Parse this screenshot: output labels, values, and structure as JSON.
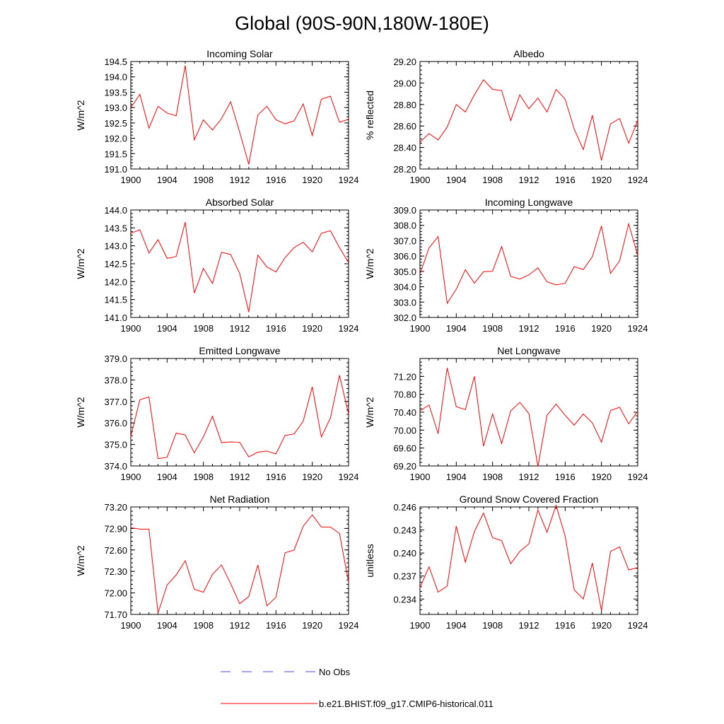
{
  "page_title": "Global (90S-90N,180W-180E)",
  "legend": {
    "entries": [
      {
        "label": "No Obs",
        "style": "dashed",
        "color": "#4a4adb"
      },
      {
        "label": "b.e21.BHIST.f09_g17.CMIP6-historical.011",
        "style": "solid",
        "color": "#ff0000"
      }
    ]
  },
  "colors": {
    "series": "#ff0000",
    "obs": "#4a4adb",
    "axis": "#000000"
  },
  "chart_data": [
    {
      "type": "line",
      "title": "Incoming Solar",
      "xlabel": "",
      "ylabel": "W/m^2",
      "xlim": [
        1900,
        1924
      ],
      "ylim": [
        191.0,
        194.5
      ],
      "xticks": [
        1900,
        1904,
        1908,
        1912,
        1916,
        1920,
        1924
      ],
      "xtick_labels": [
        "1900",
        "1904",
        "1908",
        "1912",
        "1916",
        "1920",
        "1924"
      ],
      "yticks": [
        191.0,
        191.5,
        192.0,
        192.5,
        193.0,
        193.5,
        194.0,
        194.5
      ],
      "ytick_labels": [
        "191.0",
        "191.5",
        "192.0",
        "192.5",
        "193.0",
        "193.5",
        "194.0",
        "194.5"
      ],
      "x": [
        1900,
        1901,
        1902,
        1903,
        1904,
        1905,
        1906,
        1907,
        1908,
        1909,
        1910,
        1911,
        1912,
        1913,
        1914,
        1915,
        1916,
        1917,
        1918,
        1919,
        1920,
        1921,
        1922,
        1923,
        1924
      ],
      "series": [
        {
          "name": "b.e21.BHIST.f09_g17.CMIP6-historical.011",
          "values": [
            193.0,
            193.43,
            192.33,
            193.04,
            192.82,
            192.73,
            194.37,
            191.95,
            192.6,
            192.27,
            192.64,
            193.19,
            192.2,
            191.15,
            192.76,
            193.04,
            192.6,
            192.47,
            192.57,
            193.12,
            192.09,
            193.27,
            193.37,
            192.52,
            192.62
          ]
        }
      ]
    },
    {
      "type": "line",
      "title": "Albedo",
      "xlabel": "",
      "ylabel": "% reflected",
      "xlim": [
        1900,
        1924
      ],
      "ylim": [
        28.2,
        29.2
      ],
      "xticks": [
        1900,
        1904,
        1908,
        1912,
        1916,
        1920,
        1924
      ],
      "xtick_labels": [
        "1900",
        "1904",
        "1908",
        "1912",
        "1916",
        "1920",
        "1924"
      ],
      "yticks": [
        28.2,
        28.4,
        28.6,
        28.8,
        29.0,
        29.2
      ],
      "ytick_labels": [
        "28.20",
        "28.40",
        "28.60",
        "28.80",
        "29.00",
        "29.20"
      ],
      "x": [
        1900,
        1901,
        1902,
        1903,
        1904,
        1905,
        1906,
        1907,
        1908,
        1909,
        1910,
        1911,
        1912,
        1913,
        1914,
        1915,
        1916,
        1917,
        1918,
        1919,
        1920,
        1921,
        1922,
        1923,
        1924
      ],
      "series": [
        {
          "name": "b.e21.BHIST.f09_g17.CMIP6-historical.011",
          "values": [
            28.45,
            28.53,
            28.47,
            28.59,
            28.8,
            28.73,
            28.89,
            29.03,
            28.94,
            28.93,
            28.65,
            28.89,
            28.76,
            28.86,
            28.73,
            28.94,
            28.85,
            28.57,
            28.38,
            28.7,
            28.28,
            28.62,
            28.67,
            28.44,
            28.65
          ]
        }
      ]
    },
    {
      "type": "line",
      "title": "Absorbed Solar",
      "xlabel": "",
      "ylabel": "W/m^2",
      "xlim": [
        1900,
        1924
      ],
      "ylim": [
        141.0,
        144.0
      ],
      "xticks": [
        1900,
        1904,
        1908,
        1912,
        1916,
        1920,
        1924
      ],
      "xtick_labels": [
        "1900",
        "1904",
        "1908",
        "1912",
        "1916",
        "1920",
        "1924"
      ],
      "yticks": [
        141.0,
        141.5,
        142.0,
        142.5,
        143.0,
        143.5,
        144.0
      ],
      "ytick_labels": [
        "141.0",
        "141.5",
        "142.0",
        "142.5",
        "143.0",
        "143.5",
        "144.0"
      ],
      "x": [
        1900,
        1901,
        1902,
        1903,
        1904,
        1905,
        1906,
        1907,
        1908,
        1909,
        1910,
        1911,
        1912,
        1913,
        1914,
        1915,
        1916,
        1917,
        1918,
        1919,
        1920,
        1921,
        1922,
        1923,
        1924
      ],
      "series": [
        {
          "name": "b.e21.BHIST.f09_g17.CMIP6-historical.011",
          "values": [
            143.35,
            143.45,
            142.8,
            143.17,
            142.65,
            142.7,
            143.66,
            141.68,
            142.37,
            141.95,
            142.82,
            142.76,
            142.23,
            141.15,
            142.74,
            142.41,
            142.27,
            142.67,
            142.95,
            143.1,
            142.83,
            143.35,
            143.42,
            142.95,
            142.53
          ]
        }
      ]
    },
    {
      "type": "line",
      "title": "Incoming Longwave",
      "xlabel": "",
      "ylabel": "W/m^2",
      "xlim": [
        1900,
        1924
      ],
      "ylim": [
        302.0,
        309.0
      ],
      "xticks": [
        1900,
        1904,
        1908,
        1912,
        1916,
        1920,
        1924
      ],
      "xtick_labels": [
        "1900",
        "1904",
        "1908",
        "1912",
        "1916",
        "1920",
        "1924"
      ],
      "yticks": [
        302.0,
        303.0,
        304.0,
        305.0,
        306.0,
        307.0,
        308.0,
        309.0
      ],
      "ytick_labels": [
        "302.0",
        "303.0",
        "304.0",
        "305.0",
        "306.0",
        "307.0",
        "308.0",
        "309.0"
      ],
      "x": [
        1900,
        1901,
        1902,
        1903,
        1904,
        1905,
        1906,
        1907,
        1908,
        1909,
        1910,
        1911,
        1912,
        1913,
        1914,
        1915,
        1916,
        1917,
        1918,
        1919,
        1920,
        1921,
        1922,
        1923,
        1924
      ],
      "series": [
        {
          "name": "b.e21.BHIST.f09_g17.CMIP6-historical.011",
          "values": [
            304.84,
            306.53,
            307.27,
            302.92,
            303.84,
            305.11,
            304.23,
            304.98,
            305.01,
            306.62,
            304.68,
            304.5,
            304.77,
            305.23,
            304.32,
            304.12,
            304.23,
            305.31,
            305.12,
            305.96,
            307.96,
            304.87,
            305.68,
            308.1,
            306.03
          ]
        }
      ]
    },
    {
      "type": "line",
      "title": "Emitted Longwave",
      "xlabel": "",
      "ylabel": "W/m^2",
      "xlim": [
        1900,
        1924
      ],
      "ylim": [
        374.0,
        379.0
      ],
      "xticks": [
        1900,
        1904,
        1908,
        1912,
        1916,
        1920,
        1924
      ],
      "xtick_labels": [
        "1900",
        "1904",
        "1908",
        "1912",
        "1916",
        "1920",
        "1924"
      ],
      "yticks": [
        374.0,
        375.0,
        376.0,
        377.0,
        378.0,
        379.0
      ],
      "ytick_labels": [
        "374.0",
        "375.0",
        "376.0",
        "377.0",
        "378.0",
        "379.0"
      ],
      "x": [
        1900,
        1901,
        1902,
        1903,
        1904,
        1905,
        1906,
        1907,
        1908,
        1909,
        1910,
        1911,
        1912,
        1913,
        1914,
        1915,
        1916,
        1917,
        1918,
        1919,
        1920,
        1921,
        1922,
        1923,
        1924
      ],
      "series": [
        {
          "name": "b.e21.BHIST.f09_g17.CMIP6-historical.011",
          "values": [
            375.38,
            377.08,
            377.21,
            374.34,
            374.4,
            375.53,
            375.44,
            374.61,
            375.35,
            376.31,
            375.08,
            375.12,
            375.1,
            374.42,
            374.64,
            374.69,
            374.56,
            375.42,
            375.49,
            376.08,
            377.68,
            375.35,
            376.23,
            378.22,
            376.41
          ]
        }
      ]
    },
    {
      "type": "line",
      "title": "Net Longwave",
      "xlabel": "",
      "ylabel": "W/m^2",
      "xlim": [
        1900,
        1924
      ],
      "ylim": [
        69.2,
        71.6
      ],
      "xticks": [
        1900,
        1904,
        1908,
        1912,
        1916,
        1920,
        1924
      ],
      "xtick_labels": [
        "1900",
        "1904",
        "1908",
        "1912",
        "1916",
        "1920",
        "1924"
      ],
      "yticks": [
        69.2,
        69.6,
        70.0,
        70.4,
        70.8,
        71.2
      ],
      "ytick_labels": [
        "69.20",
        "69.60",
        "70.00",
        "70.40",
        "70.80",
        "71.20"
      ],
      "x": [
        1900,
        1901,
        1902,
        1903,
        1904,
        1905,
        1906,
        1907,
        1908,
        1909,
        1910,
        1911,
        1912,
        1913,
        1914,
        1915,
        1916,
        1917,
        1918,
        1919,
        1920,
        1921,
        1922,
        1923,
        1924
      ],
      "series": [
        {
          "name": "b.e21.BHIST.f09_g17.CMIP6-historical.011",
          "values": [
            70.43,
            70.56,
            69.92,
            71.39,
            70.52,
            70.46,
            71.2,
            69.64,
            70.36,
            69.7,
            70.43,
            70.62,
            70.37,
            69.19,
            70.33,
            70.58,
            70.33,
            70.11,
            70.36,
            70.16,
            69.73,
            70.44,
            70.51,
            70.14,
            70.42
          ]
        }
      ]
    },
    {
      "type": "line",
      "title": "Net Radiation",
      "xlabel": "",
      "ylabel": "W/m^2",
      "xlim": [
        1900,
        1924
      ],
      "ylim": [
        71.7,
        73.2
      ],
      "xticks": [
        1900,
        1904,
        1908,
        1912,
        1916,
        1920,
        1924
      ],
      "xtick_labels": [
        "1900",
        "1904",
        "1908",
        "1912",
        "1916",
        "1920",
        "1924"
      ],
      "yticks": [
        71.7,
        72.0,
        72.3,
        72.6,
        72.9,
        73.2
      ],
      "ytick_labels": [
        "71.70",
        "72.00",
        "72.30",
        "72.60",
        "72.90",
        "73.20"
      ],
      "x": [
        1900,
        1901,
        1902,
        1903,
        1904,
        1905,
        1906,
        1907,
        1908,
        1909,
        1910,
        1911,
        1912,
        1913,
        1914,
        1915,
        1916,
        1917,
        1918,
        1919,
        1920,
        1921,
        1922,
        1923,
        1924
      ],
      "series": [
        {
          "name": "b.e21.BHIST.f09_g17.CMIP6-historical.011",
          "values": [
            72.91,
            72.89,
            72.89,
            71.72,
            72.11,
            72.25,
            72.45,
            72.05,
            72.01,
            72.26,
            72.39,
            72.13,
            71.85,
            71.95,
            72.39,
            71.82,
            71.94,
            72.56,
            72.6,
            72.93,
            73.09,
            72.92,
            72.92,
            72.83,
            72.15
          ]
        }
      ]
    },
    {
      "type": "line",
      "title": "Ground Snow Covered Fraction",
      "xlabel": "",
      "ylabel": "unitless",
      "xlim": [
        1900,
        1924
      ],
      "ylim": [
        0.232,
        0.246
      ],
      "xticks": [
        1900,
        1904,
        1908,
        1912,
        1916,
        1920,
        1924
      ],
      "xtick_labels": [
        "1900",
        "1904",
        "1908",
        "1912",
        "1916",
        "1920",
        "1924"
      ],
      "yticks": [
        0.234,
        0.237,
        0.24,
        0.243,
        0.246
      ],
      "ytick_labels": [
        "0.234",
        "0.237",
        "0.240",
        "0.243",
        "0.246"
      ],
      "x": [
        1900,
        1901,
        1902,
        1903,
        1904,
        1905,
        1906,
        1907,
        1908,
        1909,
        1910,
        1911,
        1912,
        1913,
        1914,
        1915,
        1916,
        1917,
        1918,
        1919,
        1920,
        1921,
        1922,
        1923,
        1924
      ],
      "series": [
        {
          "name": "b.e21.BHIST.f09_g17.CMIP6-historical.011",
          "values": [
            0.2355,
            0.2382,
            0.2349,
            0.2357,
            0.2435,
            0.2388,
            0.2428,
            0.2452,
            0.242,
            0.2416,
            0.2386,
            0.2402,
            0.2412,
            0.2456,
            0.2427,
            0.2462,
            0.2422,
            0.2352,
            0.234,
            0.2387,
            0.2325,
            0.2402,
            0.2408,
            0.2378,
            0.2381
          ]
        }
      ]
    }
  ]
}
